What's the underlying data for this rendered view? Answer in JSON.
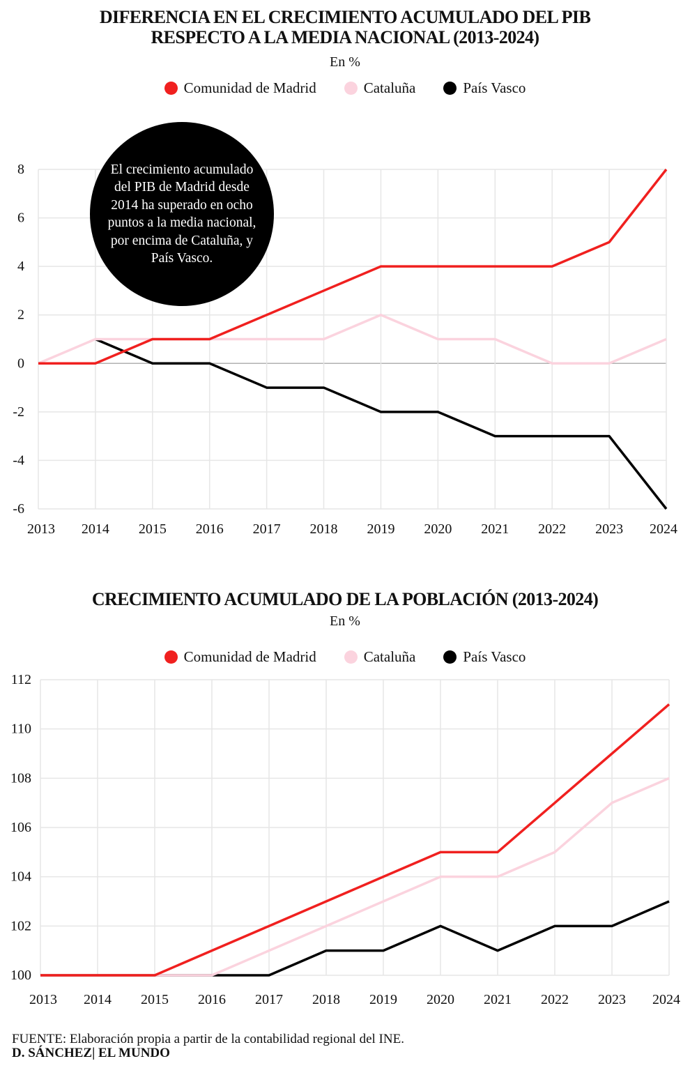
{
  "colors": {
    "madrid": "#f0201f",
    "cataluna": "#fbd3de",
    "pais_vasco": "#000000",
    "grid": "#e6e6e6",
    "zero": "#b0b0b0"
  },
  "chart_data": [
    {
      "type": "line",
      "title": "DIFERENCIA EN EL CRECIMIENTO ACUMULADO DEL PIB RESPECTO A LA MEDIA NACIONAL (2013-2024)",
      "title_lines": [
        "DIFERENCIA EN EL CRECIMIENTO ACUMULADO DEL PIB",
        "RESPECTO A LA MEDIA NACIONAL (2013-2024)"
      ],
      "subtitle": "En %",
      "x": [
        "2013",
        "2014",
        "2015",
        "2016",
        "2017",
        "2018",
        "2019",
        "2020",
        "2021",
        "2022",
        "2023",
        "2024"
      ],
      "yticks": [
        8,
        6,
        4,
        2,
        0,
        -2,
        -4,
        -6
      ],
      "ylim": [
        -6,
        8
      ],
      "grid": true,
      "legend_position": "top-center",
      "annotation": "El crecimiento acumulado del PIB de Madrid desde 2014 ha superado en ocho puntos a la media nacional, por encima de Cataluña, y País Vasco.",
      "series": [
        {
          "name": "Comunidad de Madrid",
          "color": "#f0201f",
          "values": [
            0,
            0,
            1,
            1,
            2,
            3,
            4,
            4,
            4,
            4,
            5,
            8
          ]
        },
        {
          "name": "Cataluña",
          "color": "#fbd3de",
          "values": [
            0,
            1,
            1,
            1,
            1,
            1,
            2,
            1,
            1,
            0,
            0,
            1
          ]
        },
        {
          "name": "País Vasco",
          "color": "#000000",
          "values": [
            null,
            1,
            0,
            0,
            -1,
            -1,
            -2,
            -2,
            -3,
            -3,
            -3,
            -6
          ]
        }
      ]
    },
    {
      "type": "line",
      "title": "CRECIMIENTO ACUMULADO DE LA POBLACIÓN (2013-2024)",
      "subtitle": "En %",
      "x": [
        "2013",
        "2014",
        "2015",
        "2016",
        "2017",
        "2018",
        "2019",
        "2020",
        "2021",
        "2022",
        "2023",
        "2024"
      ],
      "yticks": [
        112,
        110,
        108,
        106,
        104,
        102,
        100
      ],
      "ylim": [
        100,
        112
      ],
      "grid": true,
      "legend_position": "top-center",
      "series": [
        {
          "name": "Comunidad de Madrid",
          "color": "#f0201f",
          "values": [
            100,
            100,
            100,
            101,
            102,
            103,
            104,
            105,
            105,
            107,
            109,
            111
          ]
        },
        {
          "name": "Cataluña",
          "color": "#fbd3de",
          "values": [
            100,
            100,
            100,
            100,
            101,
            102,
            103,
            104,
            104,
            105,
            107,
            108
          ]
        },
        {
          "name": "País Vasco",
          "color": "#000000",
          "values": [
            100,
            100,
            100,
            100,
            100,
            101,
            101,
            102,
            101,
            102,
            102,
            103
          ]
        }
      ]
    }
  ],
  "footer": {
    "source": "FUENTE: Elaboración propia a partir de la contabilidad regional del INE.",
    "credit": "D. SÁNCHEZ| EL MUNDO"
  }
}
